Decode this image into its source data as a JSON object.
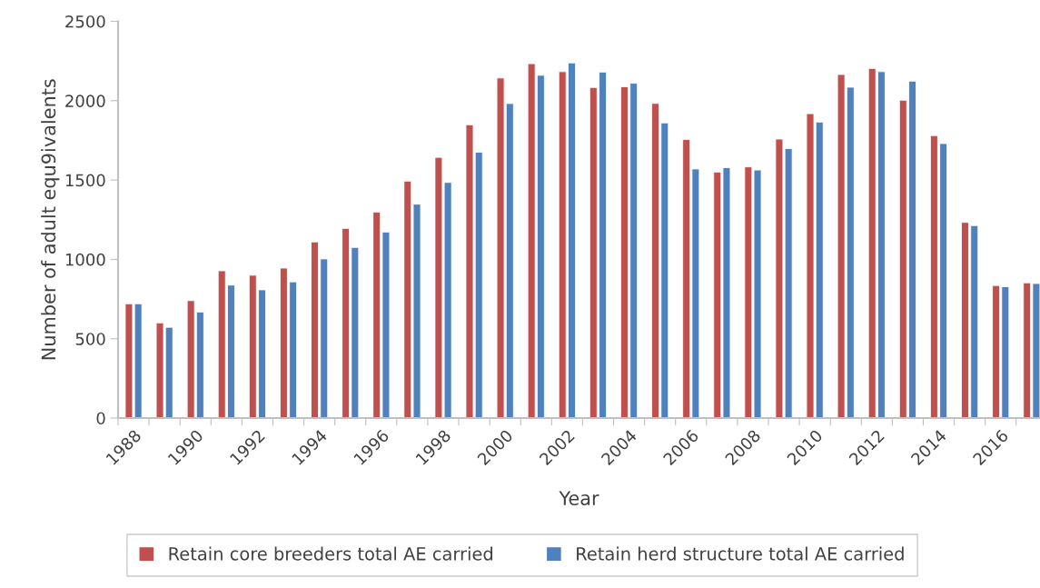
{
  "chart_data": {
    "type": "bar",
    "xlabel": "Year",
    "ylabel": "Number of adult equ9ivalents",
    "categories": [
      "1988",
      null,
      "1990",
      null,
      "1992",
      null,
      "1994",
      null,
      "1996",
      null,
      "1998",
      null,
      "2000",
      null,
      "2002",
      null,
      "2004",
      null,
      "2006",
      null,
      "2008",
      null,
      "2010",
      null,
      "2012",
      null,
      "2014",
      null,
      "2016",
      null
    ],
    "series": [
      {
        "name": "Retain core breeders total AE carried",
        "color": "#c0504d",
        "values": [
          720,
          600,
          740,
          928,
          900,
          945,
          1110,
          1195,
          1298,
          1493,
          1643,
          1848,
          2143,
          2233,
          2183,
          2083,
          2088,
          1983,
          1755,
          1550,
          1583,
          1758,
          1918,
          2165,
          2203,
          2003,
          1780,
          1233,
          835,
          852
        ]
      },
      {
        "name": "Retain herd structure total AE carried",
        "color": "#4f81bd",
        "values": [
          720,
          572,
          668,
          838,
          808,
          858,
          1003,
          1075,
          1172,
          1348,
          1485,
          1675,
          1982,
          2160,
          2238,
          2180,
          2110,
          1860,
          1570,
          1578,
          1563,
          1698,
          1865,
          2085,
          2183,
          2123,
          1730,
          1213,
          828,
          848
        ]
      }
    ],
    "ylim": [
      0,
      2500
    ],
    "yticks": [
      0,
      500,
      1000,
      1500,
      2000,
      2500
    ],
    "grid": false,
    "legend": "bottom"
  }
}
